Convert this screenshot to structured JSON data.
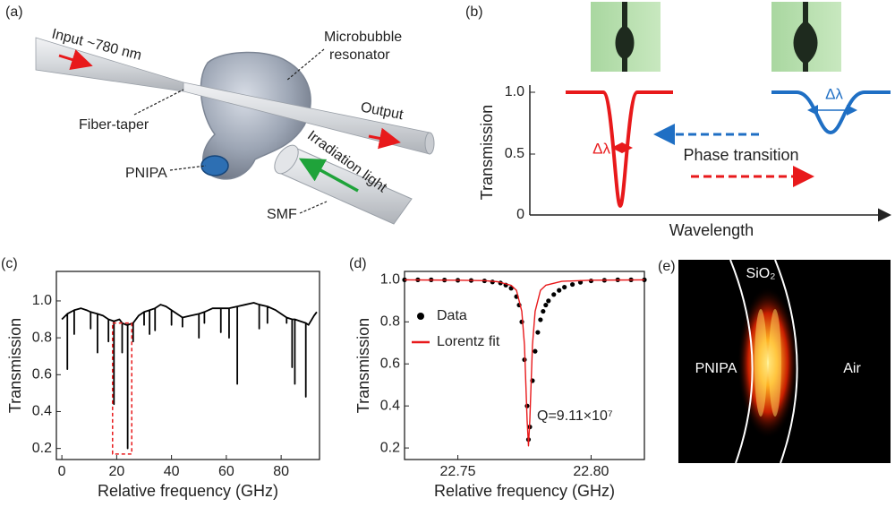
{
  "panel_a": {
    "label": "(a)",
    "input": "Input ~780 nm",
    "resonator": [
      "Microbubble",
      "resonator"
    ],
    "output": "Output",
    "taper": "Fiber-taper",
    "irradiation": "Irradiation light",
    "pnipa": "PNIPA",
    "smf": "SMF"
  },
  "panel_b": {
    "label": "(b)",
    "y_label": "Transmission",
    "x_label": "Wavelength",
    "yticks": [
      "1.0",
      "0.5",
      "0"
    ],
    "delta_red": "Δλ",
    "delta_blue": "Δλ",
    "arrow_text": "Phase transition"
  },
  "panel_e": {
    "label": "(e)",
    "shell": "SiO₂",
    "inner": "PNIPA",
    "outer": "Air"
  },
  "chart_data": [
    {
      "type": "line",
      "panel_label": "(c)",
      "x_label": "Relative frequency (GHz)",
      "y_label": "Transmission",
      "xlim": [
        -2,
        94
      ],
      "xticks": [
        0,
        20,
        40,
        60,
        80
      ],
      "ylim": [
        0.14,
        1.16
      ],
      "yticks": [
        0.2,
        0.4,
        0.6,
        0.8,
        {
          "value": 1,
          "label": "1.0"
        }
      ],
      "series": [
        {
          "type": "line",
          "color": "#000000",
          "x": [
            0,
            2,
            2,
            2,
            4.5,
            4.5,
            4.5,
            7,
            9,
            10.5,
            10.5,
            10.5,
            13,
            13,
            13,
            15,
            17,
            17,
            17,
            19,
            19,
            19,
            21,
            22,
            22,
            22,
            23.5,
            24,
            24,
            24,
            26,
            26,
            26,
            28,
            30,
            30,
            30,
            32,
            32,
            32,
            34,
            34,
            34,
            36,
            38,
            40,
            40,
            40,
            43,
            44,
            44,
            44,
            47,
            50,
            50,
            50,
            52,
            52,
            52,
            55,
            58,
            58,
            58,
            61,
            61,
            61,
            64,
            64,
            64,
            67,
            70,
            72,
            72,
            72,
            75,
            75,
            75,
            78,
            80,
            82,
            82,
            82,
            84,
            84,
            84,
            85,
            85,
            85,
            87,
            89,
            89,
            89,
            90,
            92,
            93
          ],
          "values": [
            0.9,
            0.93,
            0.63,
            0.93,
            0.95,
            0.82,
            0.95,
            0.96,
            0.95,
            0.94,
            0.85,
            0.94,
            0.93,
            0.72,
            0.93,
            0.92,
            0.9,
            0.78,
            0.9,
            0.89,
            0.44,
            0.89,
            0.9,
            0.88,
            0.72,
            0.88,
            0.87,
            0.87,
            0.2,
            0.87,
            0.88,
            0.78,
            0.88,
            0.92,
            0.94,
            0.87,
            0.94,
            0.95,
            0.82,
            0.95,
            0.96,
            0.84,
            0.96,
            0.98,
            0.97,
            0.95,
            0.87,
            0.95,
            0.92,
            0.91,
            0.86,
            0.91,
            0.92,
            0.93,
            0.8,
            0.93,
            0.94,
            0.88,
            0.94,
            0.96,
            0.96,
            0.83,
            0.96,
            0.96,
            0.8,
            0.96,
            0.97,
            0.55,
            0.97,
            0.98,
            0.99,
            0.98,
            0.85,
            0.98,
            0.97,
            0.88,
            0.97,
            0.95,
            0.93,
            0.91,
            0.88,
            0.91,
            0.9,
            0.64,
            0.9,
            0.9,
            0.55,
            0.9,
            0.89,
            0.88,
            0.48,
            0.88,
            0.87,
            0.92,
            0.94
          ]
        }
      ]
    },
    {
      "type": "line",
      "panel_label": "(d)",
      "x_label": "Relative frequency (GHz)",
      "y_label": "Transmission",
      "xlim": [
        22.73,
        22.82
      ],
      "xticks": [
        22.75,
        {
          "value": 22.8,
          "label": "22.80"
        }
      ],
      "ylim": [
        0.145,
        1.04
      ],
      "yticks": [
        0.2,
        0.4,
        0.6,
        0.8,
        {
          "value": 1,
          "label": "1.0"
        }
      ],
      "legend": "upper left",
      "annotation": "Q=9.11×10⁷",
      "series": [
        {
          "name": "Data",
          "type": "scatter",
          "color": "#000000",
          "x": [
            22.73,
            22.735,
            22.74,
            22.745,
            22.75,
            22.755,
            22.76,
            22.763,
            22.766,
            22.768,
            22.77,
            22.772,
            22.773,
            22.774,
            22.775,
            22.776,
            22.7765,
            22.777,
            22.778,
            22.779,
            22.78,
            22.781,
            22.782,
            22.783,
            22.784,
            22.786,
            22.788,
            22.79,
            22.793,
            22.796,
            22.8,
            22.805,
            22.81,
            22.815,
            22.82
          ],
          "values": [
            1,
            1,
            1,
            0.999,
            0.998,
            0.997,
            0.995,
            0.99,
            0.985,
            0.975,
            0.96,
            0.92,
            0.88,
            0.8,
            0.62,
            0.4,
            0.24,
            0.3,
            0.52,
            0.66,
            0.75,
            0.81,
            0.85,
            0.88,
            0.9,
            0.93,
            0.95,
            0.965,
            0.978,
            0.988,
            0.995,
            0.998,
            1,
            1,
            1
          ]
        },
        {
          "name": "Lorentz fit",
          "type": "line",
          "color": "#e8191b",
          "x": [
            22.73,
            22.74,
            22.75,
            22.76,
            22.765,
            22.77,
            22.772,
            22.774,
            22.775,
            22.776,
            22.7765,
            22.777,
            22.778,
            22.779,
            22.781,
            22.783,
            22.789,
            22.8,
            22.81,
            22.82
          ],
          "values": [
            1,
            0.999,
            0.998,
            0.996,
            0.991,
            0.974,
            0.95,
            0.85,
            0.69,
            0.33,
            0.21,
            0.33,
            0.69,
            0.85,
            0.95,
            0.974,
            0.993,
            0.998,
            0.999,
            1
          ]
        }
      ]
    }
  ]
}
